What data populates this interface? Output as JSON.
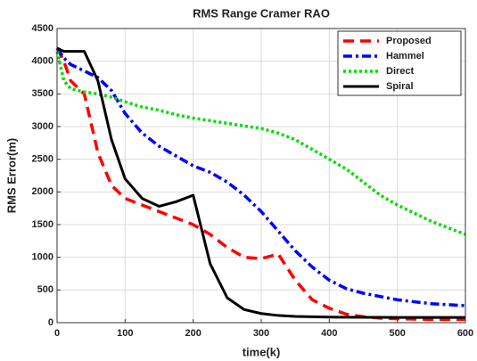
{
  "chart_data": {
    "type": "line",
    "title": "RMS Range Cramer RAO",
    "xlabel": "time(k)",
    "ylabel": "RMS Error(m)",
    "x": [
      0,
      10,
      20,
      40,
      60,
      80,
      100,
      125,
      150,
      175,
      200,
      225,
      250,
      275,
      300,
      325,
      350,
      375,
      400,
      425,
      450,
      475,
      500,
      550,
      600
    ],
    "series": [
      {
        "name": "Proposed",
        "color": "#ff0000",
        "style": "dashed",
        "values": [
          4200,
          4000,
          3700,
          3500,
          2600,
          2100,
          1900,
          1800,
          1700,
          1600,
          1500,
          1350,
          1150,
          1000,
          980,
          1050,
          650,
          350,
          220,
          130,
          90,
          70,
          60,
          50,
          50
        ]
      },
      {
        "name": "Hammel",
        "color": "#0000ff",
        "style": "dashdot",
        "values": [
          4200,
          4050,
          3950,
          3850,
          3750,
          3550,
          3200,
          2900,
          2700,
          2550,
          2400,
          2300,
          2150,
          1950,
          1700,
          1400,
          1100,
          850,
          650,
          520,
          450,
          400,
          350,
          290,
          260
        ]
      },
      {
        "name": "Direct",
        "color": "#00dd00",
        "style": "dotted",
        "values": [
          4150,
          3700,
          3580,
          3530,
          3500,
          3450,
          3380,
          3300,
          3250,
          3180,
          3130,
          3090,
          3050,
          3010,
          2970,
          2900,
          2800,
          2650,
          2500,
          2350,
          2150,
          1950,
          1800,
          1550,
          1350
        ]
      },
      {
        "name": "Spiral",
        "color": "#000000",
        "style": "solid",
        "values": [
          4200,
          4150,
          4150,
          4150,
          3700,
          2800,
          2200,
          1900,
          1780,
          1850,
          1950,
          900,
          380,
          200,
          140,
          110,
          95,
          90,
          85,
          83,
          82,
          81,
          80,
          80,
          80
        ]
      }
    ],
    "xlim": [
      0,
      600
    ],
    "xticks": [
      0,
      100,
      200,
      300,
      400,
      500,
      600
    ],
    "ylim": [
      0,
      4500
    ],
    "yticks": [
      0,
      500,
      1000,
      1500,
      2000,
      2500,
      3000,
      3500,
      4000,
      4500
    ],
    "grid": true,
    "legend": "top-right"
  }
}
